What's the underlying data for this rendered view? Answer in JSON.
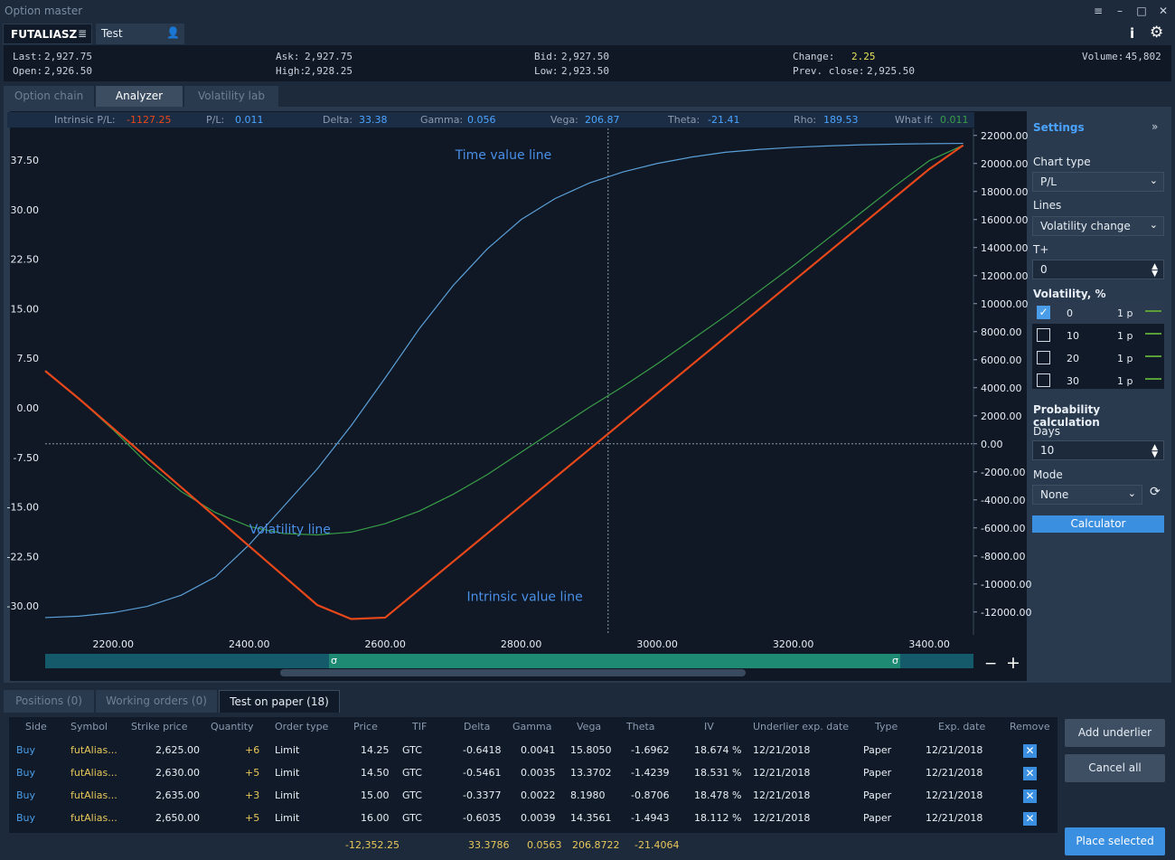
{
  "window": {
    "title": "Option master"
  },
  "symbol_tab": {
    "symbol": "FUTALIASZ",
    "account": "Test"
  },
  "quote": {
    "last_label": "Last:",
    "last": "2,927.75",
    "open_label": "Open:",
    "open": "2,926.50",
    "ask_label": "Ask:",
    "ask": "2,927.75",
    "high_label": "High:",
    "high": "2,928.25",
    "bid_label": "Bid:",
    "bid": "2,927.50",
    "low_label": "Low:",
    "low": "2,923.50",
    "change_label": "Change:",
    "change": "2.25",
    "prev_close_label": "Prev. close:",
    "prev_close": "2,925.50",
    "volume_label": "Volume:",
    "volume": "45,802"
  },
  "tabs": [
    "Option chain",
    "Analyzer",
    "Volatility lab"
  ],
  "greeks": {
    "intrinsic_label": "Intrinsic P/L:",
    "intrinsic": "-1127.25",
    "pl_label": "P/L:",
    "pl": "0.011",
    "delta_label": "Delta:",
    "delta": "33.38",
    "gamma_label": "Gamma:",
    "gamma": "0.056",
    "vega_label": "Vega:",
    "vega": "206.87",
    "theta_label": "Theta:",
    "theta": "-21.41",
    "rho_label": "Rho:",
    "rho": "189.53",
    "whatif_label": "What if:",
    "whatif": "0.011"
  },
  "settings": {
    "title": "Settings",
    "chart_type_label": "Chart type",
    "chart_type": "P/L",
    "lines_label": "Lines",
    "lines": "Volatility change",
    "tplus_label": "T+",
    "tplus": "0",
    "volatility_label": "Volatility, %",
    "volatility_rows": [
      {
        "value": "0",
        "unit": "1 p",
        "checked": true
      },
      {
        "value": "10",
        "unit": "1 p",
        "checked": false
      },
      {
        "value": "20",
        "unit": "1 p",
        "checked": false
      },
      {
        "value": "30",
        "unit": "1 p",
        "checked": false
      }
    ],
    "prob_label": "Probability calculation",
    "days_label": "Days",
    "days": "10",
    "mode_label": "Mode",
    "mode": "None",
    "calculator": "Calculator"
  },
  "chart_data": {
    "type": "line",
    "x": [
      2100,
      2150,
      2200,
      2250,
      2300,
      2350,
      2400,
      2450,
      2500,
      2550,
      2600,
      2650,
      2700,
      2750,
      2800,
      2850,
      2900,
      2950,
      3000,
      3050,
      3100,
      3150,
      3200,
      3250,
      3300,
      3350,
      3400,
      3450
    ],
    "xticks": [
      "2200.00",
      "2400.00",
      "2600.00",
      "2800.00",
      "3000.00",
      "3200.00",
      "3400.00"
    ],
    "xtick_values": [
      2200,
      2400,
      2600,
      2800,
      3000,
      3200,
      3400
    ],
    "xlim": [
      2100,
      3465
    ],
    "left_axis": {
      "ticks": [
        "37.50",
        "30.00",
        "22.50",
        "15.00",
        "7.50",
        "0.00",
        "-7.50",
        "-15.00",
        "-22.50",
        "-30.00"
      ],
      "values": [
        37.5,
        30,
        22.5,
        15,
        7.5,
        0,
        -7.5,
        -15,
        -22.5,
        -30
      ]
    },
    "right_axis": {
      "ticks": [
        "22000.00",
        "20000.00",
        "18000.00",
        "16000.00",
        "14000.00",
        "12000.00",
        "10000.00",
        "8000.00",
        "6000.00",
        "4000.00",
        "2000.00",
        "0.00",
        "-2000.00",
        "-4000.00",
        "-6000.00",
        "-8000.00",
        "-10000.00",
        "-12000.00"
      ],
      "values": [
        22000,
        20000,
        18000,
        16000,
        14000,
        12000,
        10000,
        8000,
        6000,
        4000,
        2000,
        0,
        -2000,
        -4000,
        -6000,
        -8000,
        -10000,
        -12000
      ]
    },
    "ylim": [
      -13500,
      22500
    ],
    "cursor_x": 2927.75,
    "series": [
      {
        "name": "Time value line",
        "color": "#5b9fd8",
        "values": [
          -12400,
          -12300,
          -12050,
          -11600,
          -10800,
          -9500,
          -7200,
          -4500,
          -1800,
          1300,
          4700,
          8200,
          11300,
          13900,
          16000,
          17500,
          18600,
          19400,
          20000,
          20450,
          20800,
          21000,
          21150,
          21250,
          21330,
          21380,
          21410,
          21430
        ]
      },
      {
        "name": "Volatility line",
        "color": "#3a9e48",
        "values": [
          5200,
          3200,
          1000,
          -1400,
          -3400,
          -4900,
          -5900,
          -6400,
          -6500,
          -6300,
          -5700,
          -4800,
          -3600,
          -2200,
          -600,
          1000,
          2600,
          4100,
          5700,
          7400,
          9100,
          10900,
          12700,
          14600,
          16500,
          18400,
          20200,
          21300
        ]
      },
      {
        "name": "Intrinsic value line",
        "color": "#e8471a",
        "values": [
          5200,
          3200,
          1100,
          -1000,
          -3100,
          -5200,
          -7300,
          -9400,
          -11500,
          -12500,
          -12400,
          -10400,
          -8400,
          -6400,
          -4400,
          -2400,
          -400,
          1600,
          3600,
          5600,
          7600,
          9600,
          11600,
          13600,
          15600,
          17600,
          19600,
          21300
        ]
      }
    ]
  },
  "bottom_tabs": [
    "Positions (0)",
    "Working orders (0)",
    "Test on paper (18)"
  ],
  "table": {
    "headers": [
      "Side",
      "Symbol",
      "Strike price",
      "Quantity",
      "Order type",
      "Price",
      "TIF",
      "Delta",
      "Gamma",
      "Vega",
      "Theta",
      "IV",
      "Underlier exp. date",
      "Type",
      "Exp. date",
      "Remove"
    ],
    "rows": [
      [
        "Buy",
        "futAlias...",
        "2,625.00",
        "+6",
        "Limit",
        "14.25",
        "GTC",
        "-0.6418",
        "0.0041",
        "15.8050",
        "-1.6962",
        "18.674 %",
        "12/21/2018",
        "Paper",
        "12/21/2018"
      ],
      [
        "Buy",
        "futAlias...",
        "2,630.00",
        "+5",
        "Limit",
        "14.50",
        "GTC",
        "-0.5461",
        "0.0035",
        "13.3702",
        "-1.4239",
        "18.531 %",
        "12/21/2018",
        "Paper",
        "12/21/2018"
      ],
      [
        "Buy",
        "futAlias...",
        "2,635.00",
        "+3",
        "Limit",
        "15.00",
        "GTC",
        "-0.3377",
        "0.0022",
        "8.1980",
        "-0.8706",
        "18.478 %",
        "12/21/2018",
        "Paper",
        "12/21/2018"
      ],
      [
        "Buy",
        "futAlias...",
        "2,650.00",
        "+5",
        "Limit",
        "16.00",
        "GTC",
        "-0.6035",
        "0.0039",
        "14.3561",
        "-1.4943",
        "18.112 %",
        "12/21/2018",
        "Paper",
        "12/21/2018"
      ]
    ],
    "totals": {
      "price": "-12,352.25",
      "delta": "33.3786",
      "gamma": "0.0563",
      "vega": "206.8722",
      "theta": "-21.4064"
    }
  },
  "buttons": {
    "add_underlier": "Add underlier",
    "cancel_all": "Cancel all",
    "place_selected": "Place selected"
  },
  "sigma": "σ"
}
